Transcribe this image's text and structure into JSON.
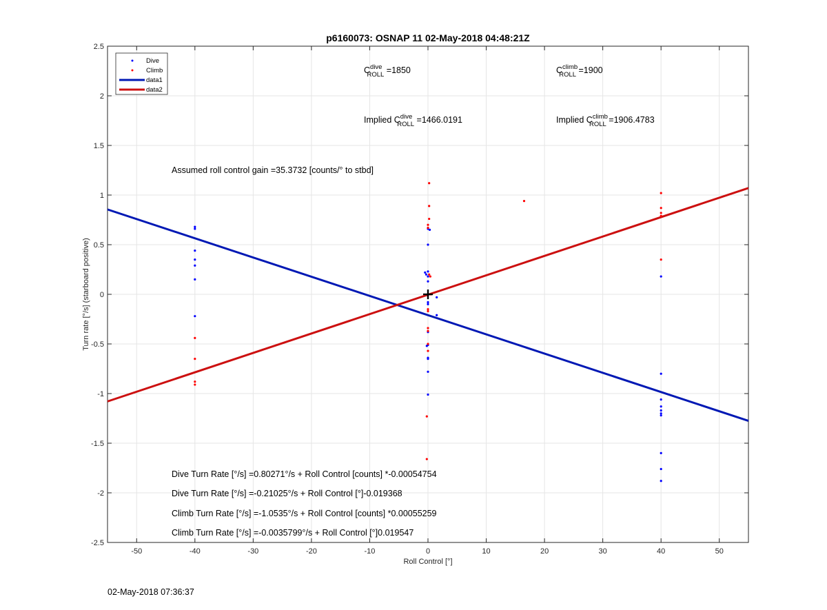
{
  "timestamp": "02-May-2018 07:36:37",
  "chart_data": {
    "type": "scatter",
    "title": "p6160073: OSNAP 11 02-May-2018 04:48:21Z",
    "xlabel": "Roll Control [°]",
    "ylabel": "Turn rate [°/s] (starboard positive)",
    "xlim": [
      -55,
      55
    ],
    "ylim": [
      -2.5,
      2.5
    ],
    "xticks": [
      -50,
      -40,
      -30,
      -20,
      -10,
      0,
      10,
      20,
      30,
      40,
      50
    ],
    "yticks": [
      -2.5,
      -2,
      -1.5,
      -1,
      -0.5,
      0,
      0.5,
      1,
      1.5,
      2,
      2.5
    ],
    "grid": true,
    "legend_position": "top-left",
    "legend": [
      "Dive",
      "Climb",
      "data1",
      "data2"
    ],
    "colors": {
      "dive": "#0000ff",
      "climb": "#ff0000",
      "data1": "#0018b4",
      "data2": "#cc1010",
      "grid": "#e5e5e5"
    },
    "series": [
      {
        "name": "Dive",
        "kind": "points",
        "x": [
          -40,
          -40,
          -40,
          -40,
          -40,
          -40,
          -40,
          -0.5,
          -0.3,
          0,
          0,
          0,
          0,
          0,
          0,
          0,
          0,
          0,
          0,
          -0.2,
          0,
          0,
          0,
          0.3,
          1.5,
          1.5,
          40,
          40,
          40,
          40,
          40,
          40,
          40,
          40,
          40,
          40
        ],
        "y": [
          0.66,
          0.68,
          0.44,
          0.35,
          0.29,
          0.15,
          -0.22,
          0.22,
          0.2,
          0.66,
          0.5,
          0.18,
          0.13,
          -0.08,
          -0.1,
          -0.38,
          -0.51,
          -0.64,
          -0.65,
          -0.52,
          -0.78,
          -1.01,
          0.23,
          0.65,
          -0.03,
          -0.21,
          0.18,
          -0.8,
          -1.06,
          -1.13,
          -1.17,
          -1.2,
          -1.22,
          -1.6,
          -1.76,
          -1.88
        ]
      },
      {
        "name": "Climb",
        "kind": "points",
        "x": [
          -40,
          -40,
          -40,
          -40,
          0.2,
          0.2,
          0.2,
          0,
          0,
          0.2,
          0.4,
          0,
          0,
          0,
          0,
          0,
          0,
          -0.2,
          -0.2,
          0.5,
          16.5,
          40,
          40,
          40,
          40,
          40
        ],
        "y": [
          -0.44,
          -0.65,
          -0.88,
          -0.91,
          1.12,
          0.89,
          0.76,
          0.7,
          0.67,
          0.2,
          0.18,
          -0.17,
          -0.15,
          -0.34,
          -0.37,
          -0.5,
          -0.57,
          -1.23,
          -1.66,
          0.0,
          0.94,
          1.02,
          0.87,
          0.82,
          0.79,
          0.35
        ]
      },
      {
        "name": "data1",
        "kind": "line",
        "x": [
          -55,
          55
        ],
        "y": [
          0.855,
          -1.275
        ]
      },
      {
        "name": "data2",
        "kind": "line",
        "x": [
          -55,
          55
        ],
        "y": [
          -1.079,
          1.071
        ]
      }
    ],
    "marker": {
      "x": 0,
      "y": 0,
      "symbol": "+"
    },
    "annotations": {
      "c_dive_main": "C",
      "c_dive_sup": "dive",
      "c_dive_sub": "ROLL",
      "c_dive_val": " =1850",
      "c_climb_main": "C",
      "c_climb_sup": "climb",
      "c_climb_sub": "ROLL",
      "c_climb_val": " =1900",
      "implied_dive_prefix": "Implied C",
      "implied_dive_sup": "dive",
      "implied_dive_sub": "ROLL",
      "implied_dive_val": " =1466.0191",
      "implied_climb_prefix": "Implied C",
      "implied_climb_sup": "climb",
      "implied_climb_sub": "ROLL",
      "implied_climb_val": " =1906.4783",
      "gain": "Assumed roll control gain =35.3732 [counts/° to stbd]",
      "eq1": "Dive Turn Rate [°/s] =0.80271°/s + Roll Control [counts] *-0.00054754",
      "eq2": "Dive Turn Rate [°/s] =-0.21025°/s + Roll Control [°]-0.019368",
      "eq3": "Climb Turn Rate [°/s] =-1.0535°/s + Roll Control [counts] *0.00055259",
      "eq4": "Climb Turn Rate [°/s] =-0.0035799°/s + Roll Control [°]0.019547"
    }
  }
}
